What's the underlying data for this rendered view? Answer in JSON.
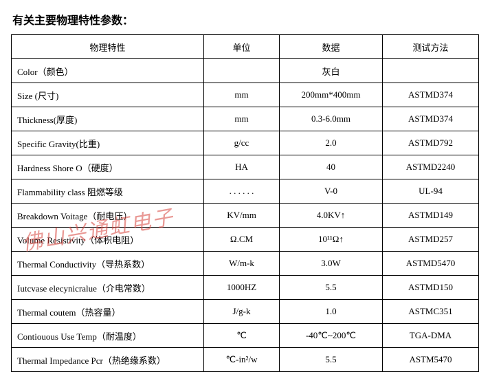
{
  "title": "有关主要物理特性参数：",
  "headers": {
    "property": "物理特性",
    "unit": "单位",
    "data": "数据",
    "method": "测试方法"
  },
  "rows": [
    {
      "property": "Color（颜色）",
      "unit": "",
      "data": "灰白",
      "method": ""
    },
    {
      "property": "Size (尺寸)",
      "unit": "mm",
      "data": "200mm*400mm",
      "method": "ASTMD374"
    },
    {
      "property": "Thickness(厚度)",
      "unit": "mm",
      "data": "0.3-6.0mm",
      "method": "ASTMD374"
    },
    {
      "property": "Specific Gravity(比重)",
      "unit": "g/cc",
      "data": "2.0",
      "method": "ASTMD792"
    },
    {
      "property": "Hardness Shore O（硬度）",
      "unit": "HA",
      "data": "40",
      "method": "ASTMD2240"
    },
    {
      "property": "Flammability class 阻燃等级",
      "unit": ". . . . . .",
      "data": "V-0",
      "method": "UL-94"
    },
    {
      "property": "Breakdown Voitage（耐电压）",
      "unit": "KV/mm",
      "data": "4.0KV↑",
      "method": "ASTMD149"
    },
    {
      "property": "Volume Resistivity（体积电阻）",
      "unit": "Ω.CM",
      "data": "10¹¹Ω↑",
      "method": "ASTMD257"
    },
    {
      "property": "Thermal Conductivity（导热系数）",
      "unit": "W/m-k",
      "data": "3.0W",
      "method": "ASTMD5470"
    },
    {
      "property": "Iutcvase elecynicralue（介电常数）",
      "unit": "1000HZ",
      "data": "5.5",
      "method": "ASTMD150"
    },
    {
      "property": "Thermal coutem（热容量）",
      "unit": "J/g-k",
      "data": "1.0",
      "method": "ASTMC351"
    },
    {
      "property": "Contiouous Use Temp（耐温度）",
      "unit": "℃",
      "data": "-40℃~200℃",
      "method": "TGA-DMA"
    },
    {
      "property": "Thermal Impedance Pcr（热绝缘系数）",
      "unit": "℃-in²/w",
      "data": "5.5",
      "method": "ASTM5470"
    }
  ],
  "watermark": "佛山兴通虹电子"
}
